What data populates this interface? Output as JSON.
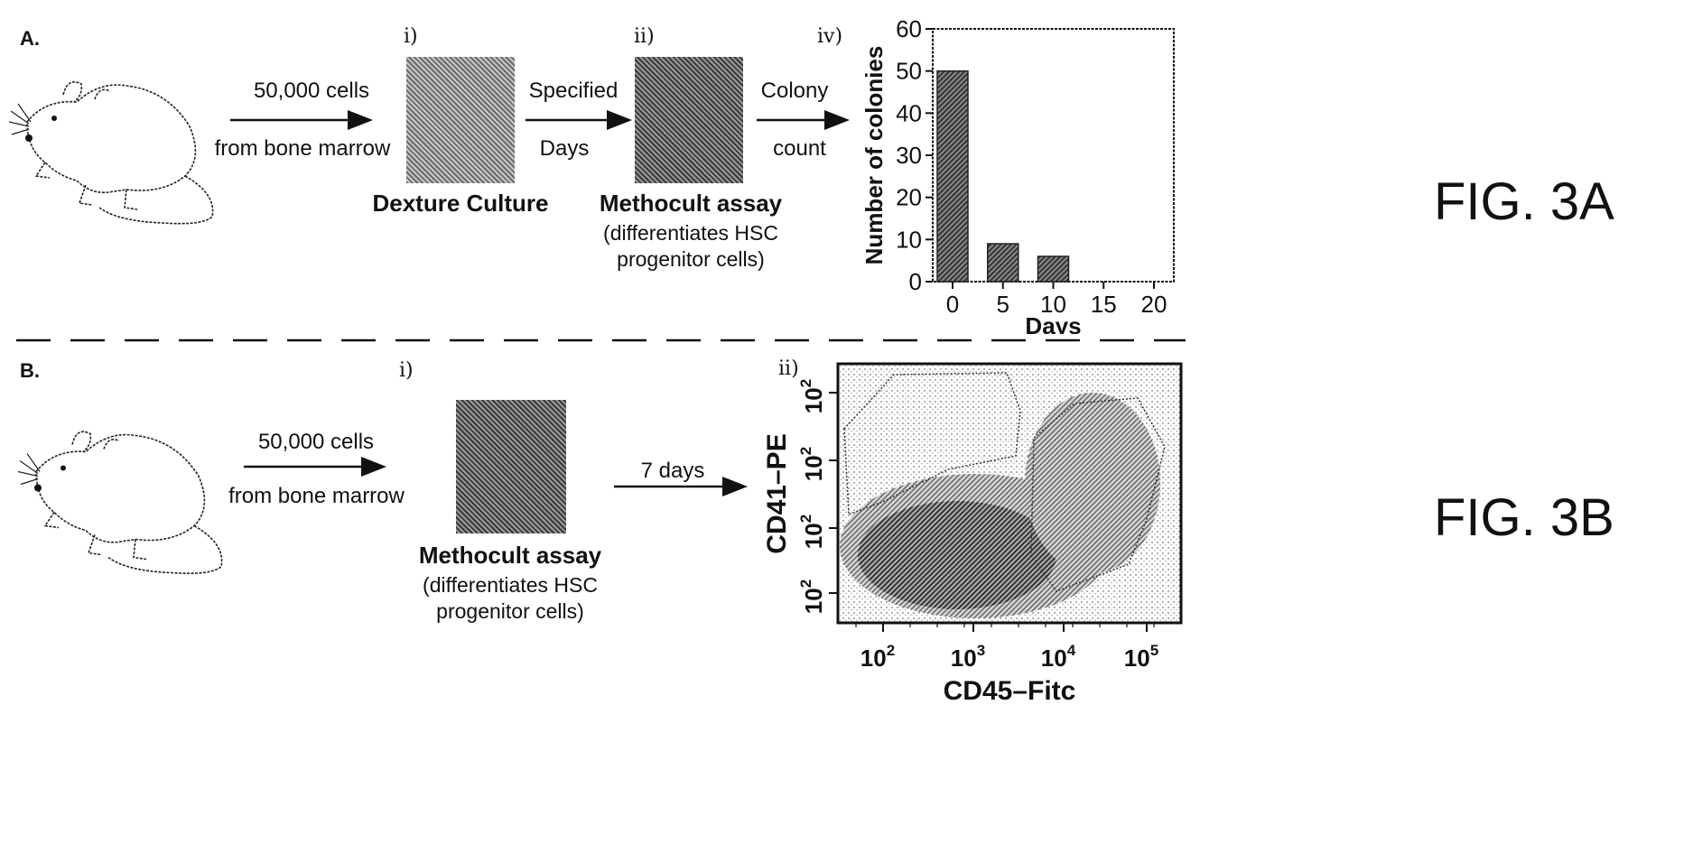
{
  "panel_a": {
    "letter": "A.",
    "steps": [
      "i)",
      "ii)",
      "iv)"
    ],
    "arrow1": {
      "top": "50,000 cells",
      "bottom": "from bone marrow"
    },
    "arrow2": {
      "top": "Specified",
      "bottom": "Days"
    },
    "arrow3": {
      "top": "Colony",
      "bottom": "count"
    },
    "box1_caption": "Dexture Culture",
    "box2_caption": "Methocult assay",
    "box2_sub": [
      "(differentiates HSC",
      "progenitor cells)"
    ],
    "fig_label": "FIG. 3A"
  },
  "panel_b": {
    "letter": "B.",
    "steps": [
      "i)",
      "ii)"
    ],
    "arrow1": {
      "top": "50,000 cells",
      "bottom": "from bone marrow"
    },
    "arrow2": {
      "top": "7 days"
    },
    "box_caption": "Methocult assay",
    "box_sub": [
      "(differentiates HSC",
      "progenitor cells)"
    ],
    "fig_label": "FIG. 3B"
  },
  "chart_data": [
    {
      "type": "bar",
      "x": [
        0,
        5,
        10
      ],
      "values": [
        50,
        9,
        6
      ],
      "xticks": [
        0,
        5,
        10,
        15,
        20
      ],
      "yticks": [
        0,
        10,
        20,
        30,
        40,
        50,
        60
      ],
      "xlim": [
        0,
        20
      ],
      "ylim": [
        0,
        60
      ],
      "xlabel": "Days",
      "ylabel": "Number of colonies"
    },
    {
      "type": "scatter",
      "xlabel": "CD45–Fitc",
      "ylabel": "CD41–PE",
      "xtick_base": "10",
      "xtick_exponents": [
        "2",
        "3",
        "4",
        "5"
      ],
      "ytick_base": "10",
      "ytick_exponents": [
        "2",
        "2",
        "2",
        "2"
      ]
    }
  ],
  "colors": {
    "ink": "#111111",
    "bar": "#555555",
    "density": "#4a4a4a"
  }
}
